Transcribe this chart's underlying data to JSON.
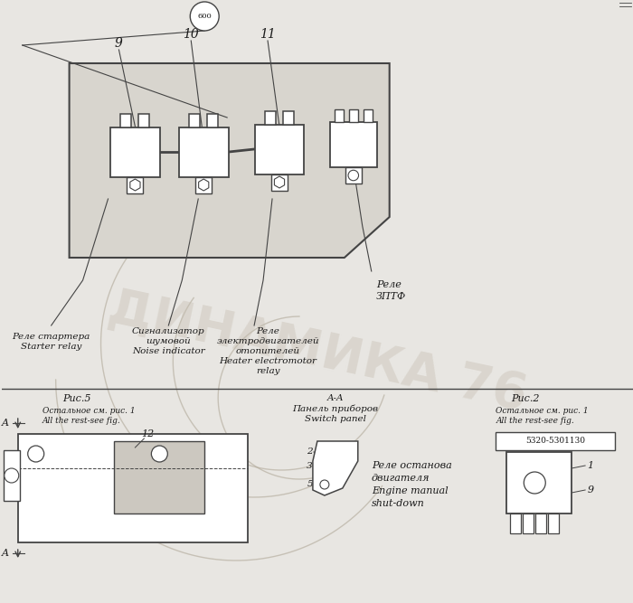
{
  "bg_color": "#e8e6e2",
  "line_color": "#444444",
  "text_color": "#1a1a1a",
  "watermark_color": "#c5bdb0",
  "label_600": "600",
  "label_rele_3ptf": "Реле\nЗПТФ",
  "label_starter": "Реле стартера\nStarter relay",
  "label_noise": "Сигнализатор\nшумовой\nNoise indicator",
  "label_heater": "Реле\nэлектродвигателей\nотопителей\nHeater electromotor\nrelay",
  "label_fig5": "Рис.5",
  "label_rest1": "Остальное см. рис. 1\nAll the rest-see fig.",
  "label_aa": "A-A\nПанель приборов\nSwitch panel",
  "label_fig2": "Рис.2",
  "label_rest2": "Остальное см. рис. 1\nAll the rest-see fig.",
  "label_part_num": "5320-5301130",
  "label_engine_stop": "Реле останова\nдвигателя\nEngine manual\nshut-down",
  "label_12": "12",
  "label_1": "1",
  "label_9b": "9",
  "label_2": "2",
  "label_3": "3",
  "label_5": "5",
  "watermark_text": "ДИНАМИКА 76"
}
